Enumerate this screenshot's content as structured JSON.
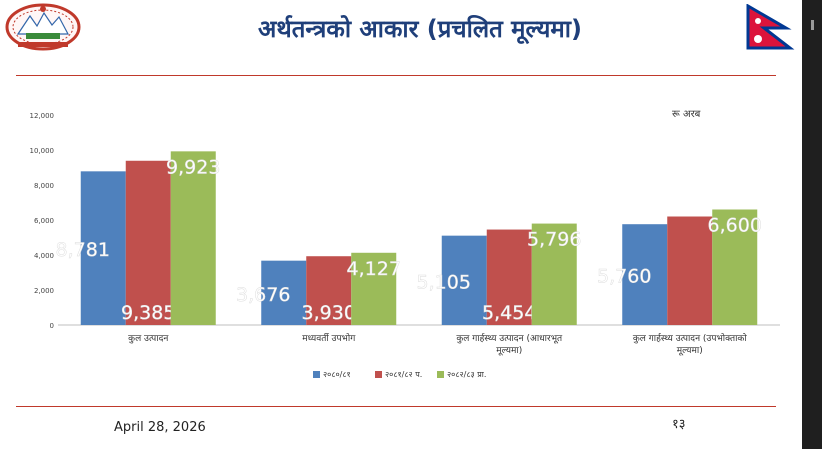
{
  "slide": {
    "title": "अर्थतन्त्रको आकार (प्रचलित मूल्यमा)",
    "unit_note": "रू अरब",
    "footer_date": "April 28, 2026",
    "page_number": "१३"
  },
  "colors": {
    "title": "#1f3f7a",
    "rule": "#c0392b",
    "series": [
      "#4f81bd",
      "#c0504d",
      "#9bbb59"
    ]
  },
  "chart_data": {
    "type": "bar",
    "title": "",
    "xlabel": "",
    "ylabel": "",
    "ylim": [
      0,
      12000
    ],
    "yticks": [
      "0",
      "2,000",
      "4,000",
      "6,000",
      "8,000",
      "10,000",
      "12,000"
    ],
    "grid": false,
    "legend_position": "bottom",
    "categories": [
      [
        "कुल उत्पादन"
      ],
      [
        "मध्यवर्ती उपभोग"
      ],
      [
        "कुल गार्हस्थ्य उत्पादन (आधारभूत",
        "मूल्यमा)"
      ],
      [
        "कुल गार्हस्थ्य उत्पादन  (उपभोक्ताको",
        "मूल्यमा)"
      ]
    ],
    "series": [
      {
        "name": "२०८०/८१",
        "values": [
          8781,
          3676,
          5105,
          5760
        ],
        "labels": [
          "8,781",
          "3,676",
          "5,105",
          "5,760"
        ]
      },
      {
        "name": "२०८१/८२ प.",
        "values": [
          9385,
          3930,
          5454,
          6200
        ],
        "labels": [
          "9,385",
          "3,930",
          "5,454",
          ""
        ]
      },
      {
        "name": "२०८२/८३ प्रा.",
        "values": [
          9923,
          4127,
          5796,
          6600
        ],
        "labels": [
          "9,923",
          "4,127",
          "5,796",
          "6,600"
        ]
      }
    ]
  }
}
